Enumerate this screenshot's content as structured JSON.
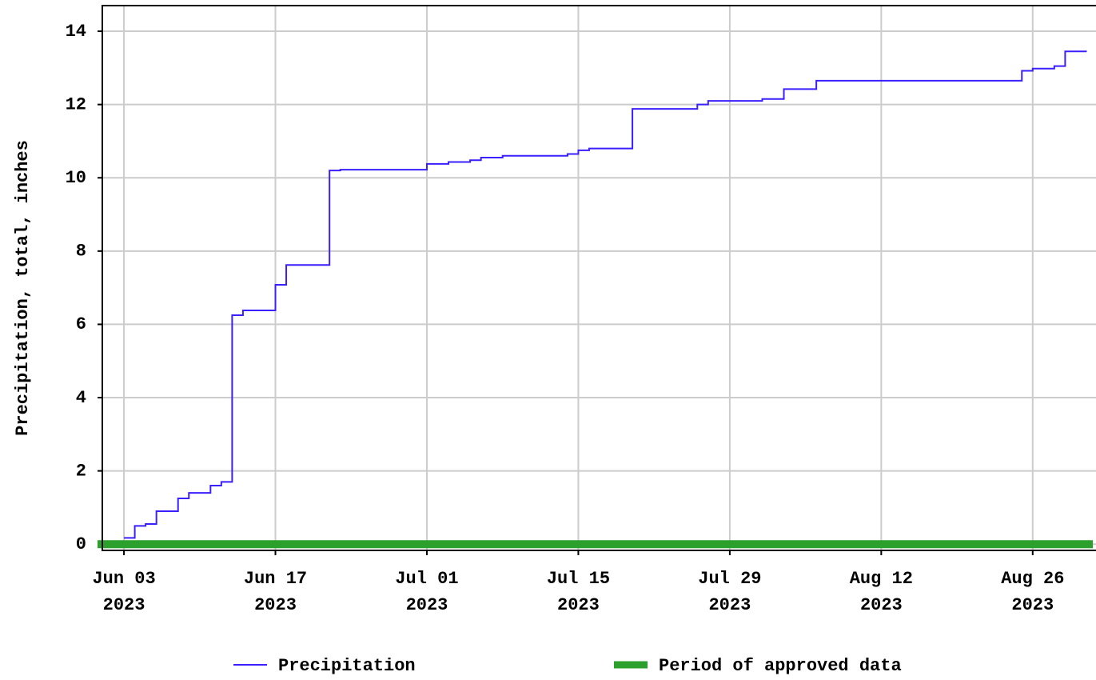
{
  "chart_data": {
    "type": "step",
    "y_label": "Precipitation, total, inches",
    "xlim": [
      "2023-06-01",
      "2023-09-01"
    ],
    "xticks": [
      {
        "value": "2023-06-03",
        "label": [
          "Jun 03",
          "2023"
        ]
      },
      {
        "value": "2023-06-17",
        "label": [
          "Jun 17",
          "2023"
        ]
      },
      {
        "value": "2023-07-01",
        "label": [
          "Jul 01",
          "2023"
        ]
      },
      {
        "value": "2023-07-15",
        "label": [
          "Jul 15",
          "2023"
        ]
      },
      {
        "value": "2023-07-29",
        "label": [
          "Jul 29",
          "2023"
        ]
      },
      {
        "value": "2023-08-12",
        "label": [
          "Aug 12",
          "2023"
        ]
      },
      {
        "value": "2023-08-26",
        "label": [
          "Aug 26",
          "2023"
        ]
      }
    ],
    "ylim": [
      -0.17,
      14.7
    ],
    "yticks": [
      0,
      2,
      4,
      6,
      8,
      10,
      12,
      14
    ],
    "grid": true,
    "series": [
      {
        "name": "Precipitation",
        "color": "#3a1fff",
        "x": [
          "2023-06-03",
          "2023-06-04",
          "2023-06-05",
          "2023-06-06",
          "2023-06-08",
          "2023-06-09",
          "2023-06-11",
          "2023-06-12",
          "2023-06-13",
          "2023-06-14",
          "2023-06-17",
          "2023-06-18",
          "2023-06-22",
          "2023-06-23",
          "2023-07-01",
          "2023-07-03",
          "2023-07-05",
          "2023-07-06",
          "2023-07-08",
          "2023-07-14",
          "2023-07-15",
          "2023-07-16",
          "2023-07-20",
          "2023-07-26",
          "2023-07-27",
          "2023-08-01",
          "2023-08-03",
          "2023-08-06",
          "2023-08-25",
          "2023-08-26",
          "2023-08-28",
          "2023-08-29",
          "2023-08-31"
        ],
        "values": [
          0.17,
          0.5,
          0.55,
          0.9,
          1.25,
          1.4,
          1.6,
          1.7,
          6.25,
          6.38,
          7.08,
          7.62,
          10.2,
          10.22,
          10.38,
          10.43,
          10.48,
          10.55,
          10.6,
          10.65,
          10.75,
          10.8,
          11.88,
          12.0,
          12.1,
          12.15,
          12.42,
          12.65,
          12.92,
          12.98,
          13.05,
          13.45,
          13.45
        ]
      },
      {
        "name": "Period of approved data",
        "color": "#2ca02c",
        "x": [
          "2023-06-01",
          "2023-09-01"
        ],
        "values": [
          0,
          0
        ]
      }
    ]
  }
}
